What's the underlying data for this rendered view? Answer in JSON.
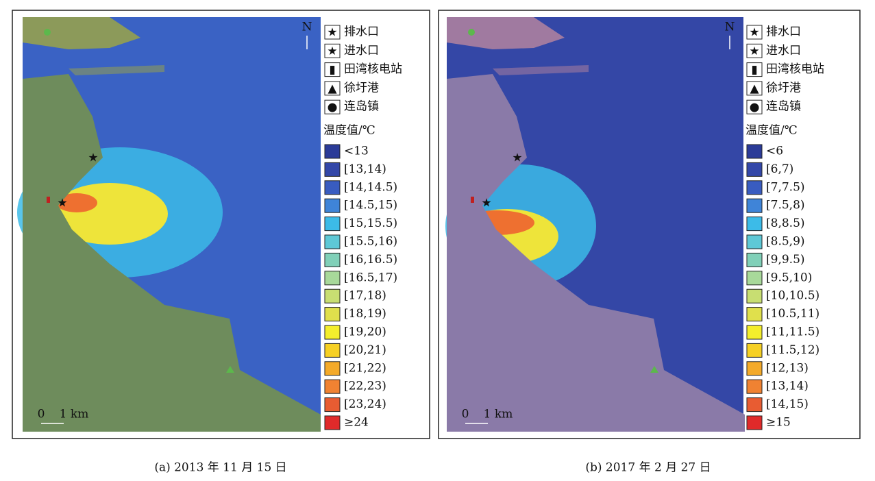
{
  "panels": [
    {
      "north": "N",
      "scale": [
        "0",
        "1 km"
      ],
      "legend": {
        "symbols": [
          "排水口",
          "进水口",
          "田湾核电站",
          "徐圩港",
          "连岛镇"
        ],
        "title": "温度值/℃",
        "classes": [
          {
            "label": "<13",
            "color": "#2b3b98"
          },
          {
            "label": "[13,14)",
            "color": "#3347a8"
          },
          {
            "label": "[14,14.5)",
            "color": "#395cc0"
          },
          {
            "label": "[14.5,15)",
            "color": "#3f84d8"
          },
          {
            "label": "[15,15.5)",
            "color": "#3cbbe8"
          },
          {
            "label": "[15.5,16)",
            "color": "#5ec8d6"
          },
          {
            "label": "[16,16.5)",
            "color": "#80d0b8"
          },
          {
            "label": "[16.5,17)",
            "color": "#a8d99a"
          },
          {
            "label": "[17,18)",
            "color": "#c8de72"
          },
          {
            "label": "[18,19)",
            "color": "#e0e04c"
          },
          {
            "label": "[19,20)",
            "color": "#f4ee2c"
          },
          {
            "label": "[20,21)",
            "color": "#f6d024"
          },
          {
            "label": "[21,22)",
            "color": "#f4aa2a"
          },
          {
            "label": "[22,23)",
            "color": "#f08232"
          },
          {
            "label": "[23,24)",
            "color": "#e85c32"
          },
          {
            "label": "≥24",
            "color": "#e02a2a"
          }
        ]
      },
      "caption": "(a) 2013 年 11 月 15 日"
    },
    {
      "north": "N",
      "scale": [
        "0",
        "1 km"
      ],
      "legend": {
        "symbols": [
          "排水口",
          "进水口",
          "田湾核电站",
          "徐圩港",
          "连岛镇"
        ],
        "title": "温度值/℃",
        "classes": [
          {
            "label": "<6",
            "color": "#2b3b98"
          },
          {
            "label": "[6,7)",
            "color": "#3347a8"
          },
          {
            "label": "[7,7.5)",
            "color": "#395cc0"
          },
          {
            "label": "[7.5,8)",
            "color": "#3f84d8"
          },
          {
            "label": "[8,8.5)",
            "color": "#3cbbe8"
          },
          {
            "label": "[8.5,9)",
            "color": "#5ec8d6"
          },
          {
            "label": "[9,9.5)",
            "color": "#80d0b8"
          },
          {
            "label": "[9.5,10)",
            "color": "#a8d99a"
          },
          {
            "label": "[10,10.5)",
            "color": "#c8de72"
          },
          {
            "label": "[10.5,11)",
            "color": "#e0e04c"
          },
          {
            "label": "[11,11.5)",
            "color": "#f4ee2c"
          },
          {
            "label": "[11.5,12)",
            "color": "#f6d024"
          },
          {
            "label": "[12,13)",
            "color": "#f4aa2a"
          },
          {
            "label": "[13,14)",
            "color": "#f08232"
          },
          {
            "label": "[14,15)",
            "color": "#e85c32"
          },
          {
            "label": "≥15",
            "color": "#e02a2a"
          }
        ]
      },
      "caption": "(b) 2017 年 2 月 27 日"
    }
  ]
}
